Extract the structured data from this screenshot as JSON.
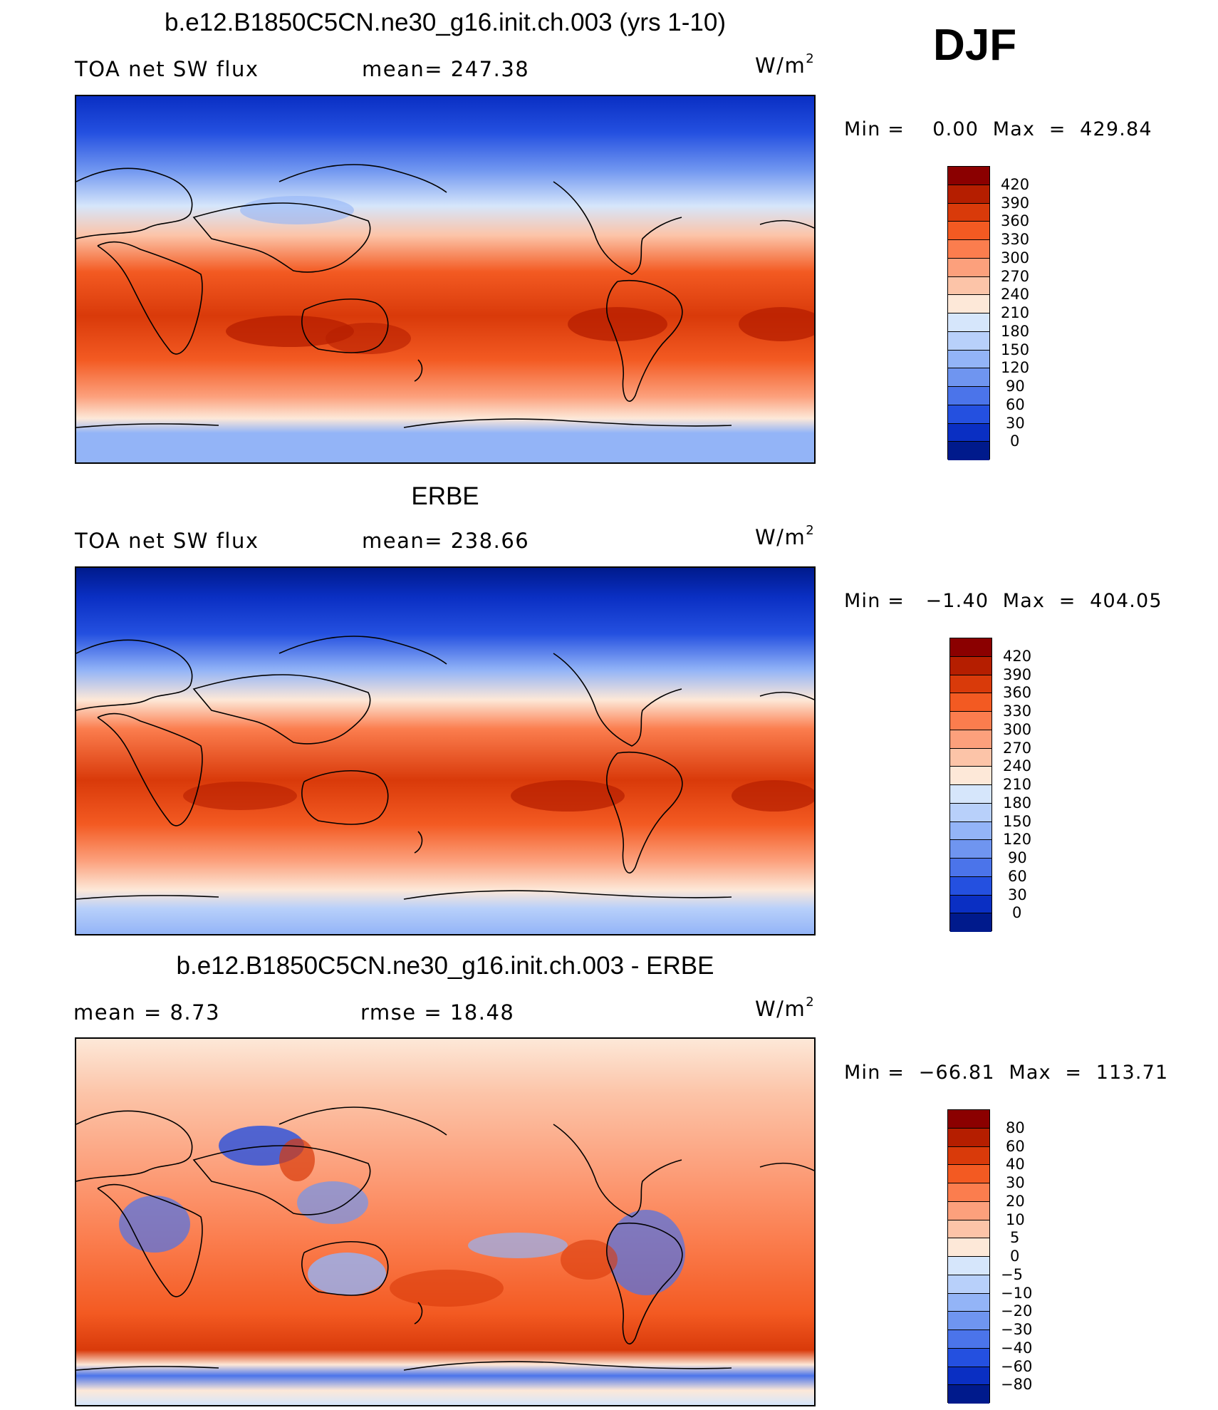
{
  "season": "DJF",
  "panels": [
    {
      "title": "b.e12.B1850C5CN.ne30_g16.init.ch.003 (yrs 1-10)",
      "left_label": "TOA net SW flux",
      "stat_label": "mean= 247.38",
      "units": "W/m",
      "units_exp": "2",
      "minmax": "Min =    0.00  Max  =  429.84",
      "levels": [
        "420",
        "390",
        "360",
        "330",
        "300",
        "270",
        "240",
        "210",
        "180",
        "150",
        "120",
        "90",
        "60",
        "30",
        "0"
      ],
      "colors": [
        "#8b0000",
        "#b51e00",
        "#d93a0a",
        "#f35a22",
        "#fb7d4e",
        "#fca07c",
        "#fcc4a8",
        "#fde8d8",
        "#d6e6fb",
        "#b8d0fa",
        "#93b4f7",
        "#6f95f0",
        "#4b74ea",
        "#2450e0",
        "#0a2fc3",
        "#001a8c"
      ]
    },
    {
      "title": "ERBE",
      "left_label": "TOA net SW flux",
      "stat_label": "mean= 238.66",
      "units": "W/m",
      "units_exp": "2",
      "minmax": "Min =   −1.40  Max  =  404.05",
      "levels": [
        "420",
        "390",
        "360",
        "330",
        "300",
        "270",
        "240",
        "210",
        "180",
        "150",
        "120",
        "90",
        "60",
        "30",
        "0"
      ],
      "colors": [
        "#8b0000",
        "#b51e00",
        "#d93a0a",
        "#f35a22",
        "#fb7d4e",
        "#fca07c",
        "#fcc4a8",
        "#fde8d8",
        "#d6e6fb",
        "#b8d0fa",
        "#93b4f7",
        "#6f95f0",
        "#4b74ea",
        "#2450e0",
        "#0a2fc3",
        "#001a8c"
      ]
    },
    {
      "title": "b.e12.B1850C5CN.ne30_g16.init.ch.003 - ERBE",
      "left_label": "mean =     8.73",
      "stat_label": "rmse =    18.48",
      "units": "W/m",
      "units_exp": "2",
      "minmax": "Min =  −66.81  Max  =  113.71",
      "levels": [
        "80",
        "60",
        "40",
        "30",
        "20",
        "10",
        "5",
        "0",
        "−5",
        "−10",
        "−20",
        "−30",
        "−40",
        "−60",
        "−80"
      ],
      "colors": [
        "#8b0000",
        "#b51e00",
        "#d93a0a",
        "#f35a22",
        "#fb7d4e",
        "#fca07c",
        "#fcc4a8",
        "#fde8d8",
        "#d6e6fb",
        "#b8d0fa",
        "#93b4f7",
        "#6f95f0",
        "#4b74ea",
        "#2450e0",
        "#0a2fc3",
        "#001a8c"
      ]
    }
  ]
}
